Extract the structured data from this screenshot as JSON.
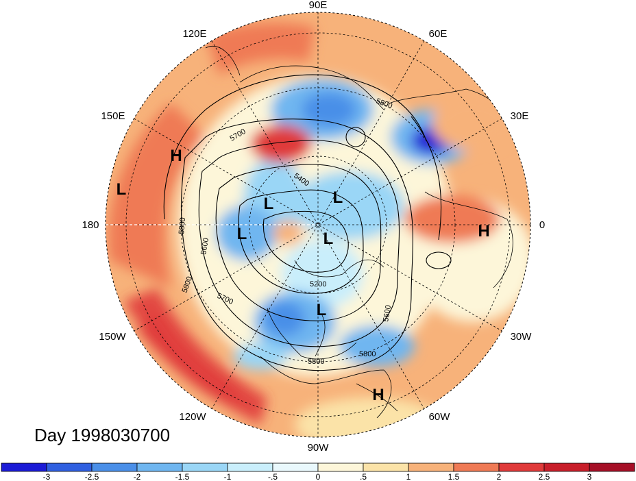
{
  "title": "Day 1998030700",
  "longitude_labels": [
    "90E",
    "60E",
    "30E",
    "0",
    "30W",
    "60W",
    "90W",
    "120W",
    "150W",
    "180",
    "150E",
    "120E"
  ],
  "contour_labels": [
    "5800",
    "5700",
    "5400",
    "5800",
    "5600",
    "5800",
    "5700",
    "5200",
    "5600",
    "5800",
    "5800"
  ],
  "pressure_centers": [
    {
      "type": "H",
      "label": "H"
    },
    {
      "type": "L",
      "label": "L"
    },
    {
      "type": "L",
      "label": "L"
    },
    {
      "type": "L",
      "label": "L"
    },
    {
      "type": "L",
      "label": "L"
    },
    {
      "type": "L",
      "label": "L"
    },
    {
      "type": "L",
      "label": "L"
    },
    {
      "type": "H",
      "label": "H"
    },
    {
      "type": "H",
      "label": "H"
    }
  ],
  "colorbar": {
    "ticks": [
      "-3",
      "-2.5",
      "-2",
      "-1.5",
      "-1",
      "-.5",
      "0",
      ".5",
      "1",
      "1.5",
      "2",
      "2.5",
      "3"
    ],
    "colors": [
      "#1b1bd6",
      "#2f5fe0",
      "#4a8fe8",
      "#6fb6f0",
      "#9ad6f6",
      "#c9eefb",
      "#e9f8fc",
      "#fdf6d9",
      "#fbe3a8",
      "#f7b27a",
      "#ef7a55",
      "#e03a3a",
      "#c81e2a",
      "#a50f26"
    ]
  },
  "colors": {
    "land_outline": "#000000",
    "background": "#ffffff"
  }
}
